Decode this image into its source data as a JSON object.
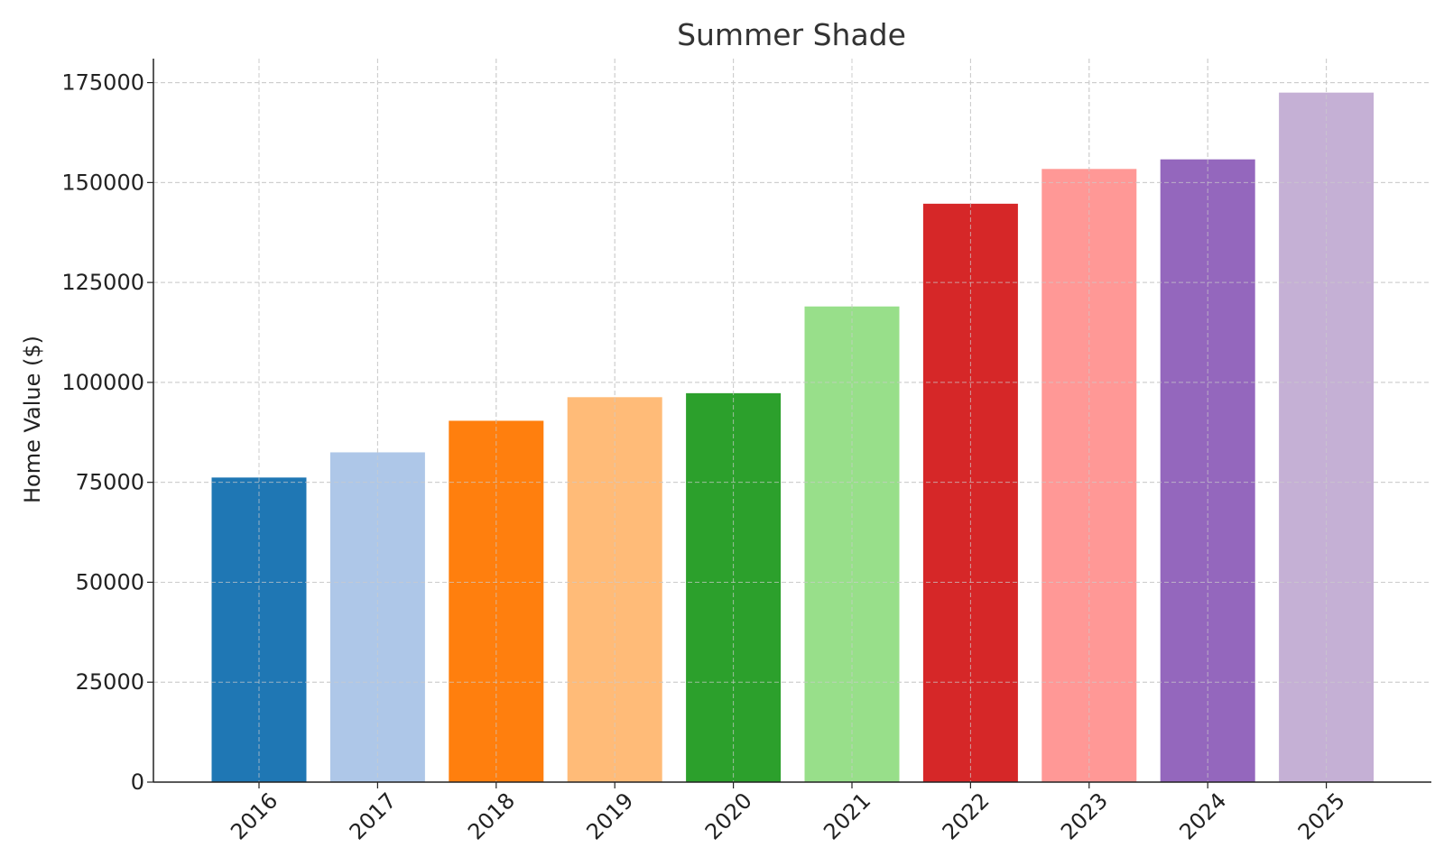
{
  "chart_data": {
    "type": "bar",
    "title": "Summer Shade",
    "xlabel": "",
    "ylabel": "Home Value ($)",
    "categories": [
      "2016",
      "2017",
      "2018",
      "2019",
      "2020",
      "2021",
      "2022",
      "2023",
      "2024",
      "2025"
    ],
    "values": [
      76200,
      82500,
      90400,
      96300,
      97300,
      119000,
      144700,
      153400,
      155800,
      172500
    ],
    "colors": [
      "#1f77b4",
      "#aec7e8",
      "#ff7f0e",
      "#ffbb78",
      "#2ca02c",
      "#98df8a",
      "#d62728",
      "#ff9896",
      "#9467bd",
      "#c5b0d5"
    ],
    "ylim": [
      0,
      181000
    ],
    "yticks": [
      "0",
      "25000",
      "50000",
      "75000",
      "100000",
      "125000",
      "150000",
      "175000"
    ],
    "grid": true,
    "legend": "none"
  }
}
